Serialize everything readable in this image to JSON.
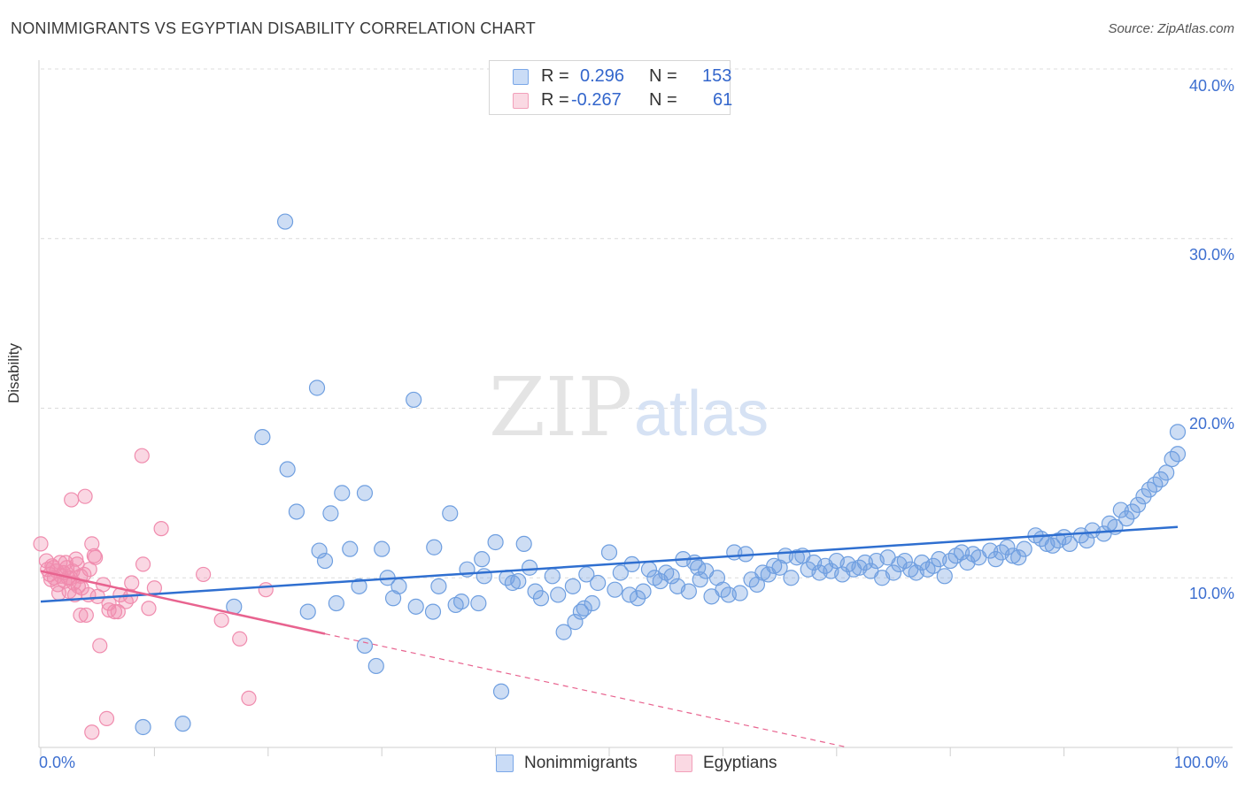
{
  "header": {
    "title": "NONIMMIGRANTS VS EGYPTIAN DISABILITY CORRELATION CHART",
    "source": "Source: ZipAtlas.com"
  },
  "watermark": {
    "zip": "ZIP",
    "atlas": "atlas"
  },
  "legend": {
    "rows": [
      {
        "r_label": "R =",
        "r_value": "0.296",
        "n_label": "N =",
        "n_value": "153",
        "color": "#7aa7e8"
      },
      {
        "r_label": "R =",
        "r_value": "-0.267",
        "n_label": "N =",
        "n_value": "61",
        "color": "#f2a0ba"
      }
    ]
  },
  "bottom_legend": [
    {
      "label": "Nonimmigrants",
      "color": "#7aa7e8"
    },
    {
      "label": "Egyptians",
      "color": "#f2a0ba"
    }
  ],
  "chart_data": {
    "type": "scatter",
    "title": "NONIMMIGRANTS VS EGYPTIAN DISABILITY CORRELATION CHART",
    "xlabel": "",
    "ylabel": "Disability",
    "xlim": [
      0,
      100
    ],
    "ylim": [
      0,
      40
    ],
    "x_tick_labels": [
      "0.0%",
      "100.0%"
    ],
    "y_tick_labels": [
      "10.0%",
      "20.0%",
      "30.0%",
      "40.0%"
    ],
    "y_ticks": [
      10,
      20,
      30,
      40
    ],
    "grid": true,
    "series": [
      {
        "name": "Nonimmigrants",
        "color": "#6f9fe0",
        "trend": {
          "x": [
            0,
            100
          ],
          "y": [
            8.6,
            13.0
          ],
          "color": "#2f6fd0"
        },
        "points": [
          [
            21.5,
            31.0
          ],
          [
            24.3,
            21.2
          ],
          [
            32.8,
            20.5
          ],
          [
            19.5,
            18.3
          ],
          [
            21.7,
            16.4
          ],
          [
            26.5,
            15.0
          ],
          [
            28.5,
            15.0
          ],
          [
            22.5,
            13.9
          ],
          [
            25.5,
            13.8
          ],
          [
            36.0,
            13.8
          ],
          [
            24.5,
            11.6
          ],
          [
            27.2,
            11.7
          ],
          [
            30.0,
            11.7
          ],
          [
            34.6,
            11.8
          ],
          [
            38.8,
            11.1
          ],
          [
            40.0,
            12.1
          ],
          [
            42.5,
            12.0
          ],
          [
            37.5,
            10.5
          ],
          [
            39.0,
            10.1
          ],
          [
            41.0,
            10.0
          ],
          [
            28.0,
            9.5
          ],
          [
            31.5,
            9.5
          ],
          [
            35.0,
            9.5
          ],
          [
            26.0,
            8.5
          ],
          [
            31.0,
            8.8
          ],
          [
            33.0,
            8.3
          ],
          [
            34.5,
            8.0
          ],
          [
            36.5,
            8.4
          ],
          [
            38.5,
            8.5
          ],
          [
            23.5,
            8.0
          ],
          [
            17.0,
            8.3
          ],
          [
            28.5,
            6.0
          ],
          [
            29.5,
            4.8
          ],
          [
            40.5,
            3.3
          ],
          [
            9.0,
            1.2
          ],
          [
            12.5,
            1.4
          ],
          [
            42.0,
            9.8
          ],
          [
            43.5,
            9.2
          ],
          [
            44.0,
            8.8
          ],
          [
            45.0,
            10.1
          ],
          [
            46.0,
            6.8
          ],
          [
            47.0,
            7.4
          ],
          [
            47.5,
            8.0
          ],
          [
            48.5,
            8.5
          ],
          [
            45.5,
            9.0
          ],
          [
            46.8,
            9.5
          ],
          [
            48.0,
            10.2
          ],
          [
            49.0,
            9.7
          ],
          [
            50.0,
            11.5
          ],
          [
            51.0,
            10.3
          ],
          [
            51.8,
            9.0
          ],
          [
            52.5,
            8.8
          ],
          [
            53.0,
            9.2
          ],
          [
            53.5,
            10.5
          ],
          [
            54.5,
            9.8
          ],
          [
            55.0,
            10.3
          ],
          [
            55.5,
            10.1
          ],
          [
            56.5,
            11.1
          ],
          [
            57.5,
            10.9
          ],
          [
            56.0,
            9.5
          ],
          [
            57.0,
            9.2
          ],
          [
            58.0,
            9.9
          ],
          [
            58.5,
            10.4
          ],
          [
            59.5,
            10.0
          ],
          [
            60.0,
            9.3
          ],
          [
            60.5,
            9.0
          ],
          [
            61.5,
            9.1
          ],
          [
            62.0,
            11.4
          ],
          [
            62.5,
            9.9
          ],
          [
            63.5,
            10.3
          ],
          [
            64.0,
            10.2
          ],
          [
            64.5,
            10.7
          ],
          [
            65.0,
            10.6
          ],
          [
            65.5,
            11.3
          ],
          [
            66.0,
            10.0
          ],
          [
            66.5,
            11.2
          ],
          [
            67.5,
            10.5
          ],
          [
            68.0,
            10.9
          ],
          [
            68.5,
            10.3
          ],
          [
            69.0,
            10.7
          ],
          [
            70.0,
            11.0
          ],
          [
            70.5,
            10.2
          ],
          [
            71.0,
            10.8
          ],
          [
            71.5,
            10.5
          ],
          [
            72.0,
            10.6
          ],
          [
            72.5,
            10.9
          ],
          [
            73.0,
            10.4
          ],
          [
            73.5,
            11.0
          ],
          [
            74.5,
            11.2
          ],
          [
            75.0,
            10.3
          ],
          [
            75.5,
            10.8
          ],
          [
            76.0,
            11.0
          ],
          [
            76.5,
            10.5
          ],
          [
            77.0,
            10.3
          ],
          [
            77.5,
            10.9
          ],
          [
            78.5,
            10.7
          ],
          [
            79.0,
            11.1
          ],
          [
            79.5,
            10.1
          ],
          [
            80.5,
            11.3
          ],
          [
            81.0,
            11.5
          ],
          [
            81.5,
            10.9
          ],
          [
            82.0,
            11.4
          ],
          [
            82.5,
            11.2
          ],
          [
            83.5,
            11.6
          ],
          [
            84.0,
            11.1
          ],
          [
            84.5,
            11.5
          ],
          [
            85.0,
            11.8
          ],
          [
            85.5,
            11.3
          ],
          [
            86.0,
            11.2
          ],
          [
            86.5,
            11.7
          ],
          [
            87.5,
            12.5
          ],
          [
            88.0,
            12.3
          ],
          [
            88.5,
            12.0
          ],
          [
            89.0,
            11.9
          ],
          [
            89.5,
            12.2
          ],
          [
            90.0,
            12.4
          ],
          [
            90.5,
            12.0
          ],
          [
            91.5,
            12.5
          ],
          [
            92.0,
            12.2
          ],
          [
            92.5,
            12.8
          ],
          [
            93.5,
            12.6
          ],
          [
            94.0,
            13.2
          ],
          [
            94.5,
            13.0
          ],
          [
            95.0,
            14.0
          ],
          [
            95.5,
            13.5
          ],
          [
            96.0,
            13.9
          ],
          [
            96.5,
            14.3
          ],
          [
            97.0,
            14.8
          ],
          [
            97.5,
            15.2
          ],
          [
            98.0,
            15.5
          ],
          [
            98.5,
            15.8
          ],
          [
            99.0,
            16.2
          ],
          [
            99.5,
            17.0
          ],
          [
            100.0,
            17.3
          ],
          [
            100.0,
            18.6
          ],
          [
            25.0,
            11.0
          ],
          [
            30.5,
            10.0
          ],
          [
            37.0,
            8.6
          ],
          [
            41.5,
            9.7
          ],
          [
            43.0,
            10.6
          ],
          [
            47.8,
            8.2
          ],
          [
            50.5,
            9.3
          ],
          [
            52.0,
            10.8
          ],
          [
            54.0,
            10.0
          ],
          [
            57.8,
            10.6
          ],
          [
            59.0,
            8.9
          ],
          [
            61.0,
            11.5
          ],
          [
            63.0,
            9.6
          ],
          [
            67.0,
            11.3
          ],
          [
            69.5,
            10.4
          ],
          [
            74.0,
            10.0
          ],
          [
            78.0,
            10.5
          ],
          [
            80.0,
            11.0
          ]
        ]
      },
      {
        "name": "Egyptians",
        "color": "#f08cae",
        "trend": {
          "x": [
            0,
            25,
            71
          ],
          "y": [
            10.4,
            6.7,
            0
          ],
          "color": "#e8638f"
        },
        "points": [
          [
            0.0,
            12.0
          ],
          [
            0.5,
            11.0
          ],
          [
            0.6,
            10.5
          ],
          [
            0.8,
            10.2
          ],
          [
            1.0,
            10.7
          ],
          [
            1.2,
            10.0
          ],
          [
            1.4,
            10.4
          ],
          [
            1.5,
            9.6
          ],
          [
            1.7,
            10.9
          ],
          [
            1.8,
            10.1
          ],
          [
            2.0,
            10.3
          ],
          [
            2.1,
            9.8
          ],
          [
            2.3,
            10.6
          ],
          [
            2.5,
            9.2
          ],
          [
            2.6,
            10.0
          ],
          [
            2.8,
            10.4
          ],
          [
            3.0,
            9.0
          ],
          [
            3.2,
            10.8
          ],
          [
            3.3,
            9.5
          ],
          [
            3.5,
            10.1
          ],
          [
            2.7,
            14.6
          ],
          [
            3.9,
            14.8
          ],
          [
            8.9,
            17.2
          ],
          [
            10.6,
            12.9
          ],
          [
            3.1,
            11.1
          ],
          [
            4.5,
            12.0
          ],
          [
            4.8,
            11.2
          ],
          [
            5.5,
            9.6
          ],
          [
            6.0,
            8.1
          ],
          [
            6.5,
            8.0
          ],
          [
            7.0,
            9.0
          ],
          [
            7.5,
            8.6
          ],
          [
            8.0,
            9.7
          ],
          [
            9.0,
            10.8
          ],
          [
            9.5,
            8.2
          ],
          [
            10.0,
            9.4
          ],
          [
            4.2,
            9.0
          ],
          [
            5.0,
            8.9
          ],
          [
            3.5,
            7.8
          ],
          [
            4.0,
            7.8
          ],
          [
            5.2,
            6.0
          ],
          [
            6.0,
            8.5
          ],
          [
            14.3,
            10.2
          ],
          [
            15.9,
            7.5
          ],
          [
            17.5,
            6.4
          ],
          [
            19.8,
            9.3
          ],
          [
            18.3,
            2.9
          ],
          [
            5.8,
            1.7
          ],
          [
            4.5,
            0.9
          ],
          [
            1.6,
            9.1
          ],
          [
            2.2,
            10.9
          ],
          [
            3.8,
            10.2
          ],
          [
            4.3,
            10.5
          ],
          [
            2.4,
            10.0
          ],
          [
            1.1,
            10.6
          ],
          [
            0.9,
            9.9
          ],
          [
            3.6,
            9.4
          ],
          [
            4.7,
            11.3
          ],
          [
            6.8,
            8.0
          ],
          [
            7.9,
            8.9
          ],
          [
            2.9,
            9.7
          ]
        ]
      }
    ]
  }
}
